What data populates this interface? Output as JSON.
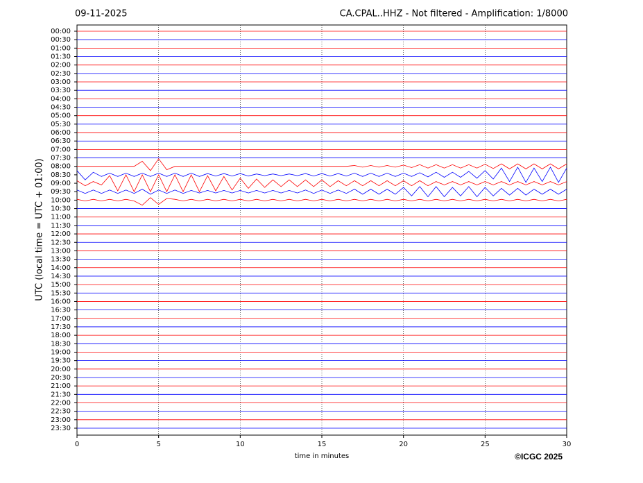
{
  "chart_data": {
    "type": "helicorder",
    "date": "09-11-2025",
    "title": "CA.CPAL..HHZ - Not filtered - Amplification: 1/8000",
    "ylabel": "UTC (local time = UTC + 01:00)",
    "xlabel": "time in minutes",
    "credit": "©ICGC 2025",
    "categories": [
      "00:00",
      "00:30",
      "01:00",
      "01:30",
      "02:00",
      "02:30",
      "03:00",
      "03:30",
      "04:00",
      "04:30",
      "05:00",
      "05:30",
      "06:00",
      "06:30",
      "07:00",
      "07:30",
      "08:00",
      "08:30",
      "09:00",
      "09:30",
      "10:00",
      "10:30",
      "11:00",
      "11:30",
      "12:00",
      "12:30",
      "13:00",
      "13:30",
      "14:00",
      "14:30",
      "15:00",
      "15:30",
      "16:00",
      "16:30",
      "17:00",
      "17:30",
      "18:00",
      "18:30",
      "19:00",
      "19:30",
      "20:00",
      "20:30",
      "21:00",
      "21:30",
      "22:00",
      "22:30",
      "23:00",
      "23:30"
    ],
    "colors": [
      "#ff0000",
      "#0000ff"
    ],
    "xlim": [
      0,
      30
    ],
    "xticks": [
      0,
      5,
      10,
      15,
      20,
      25,
      30
    ],
    "grid": true,
    "x": [
      0,
      0.5,
      1,
      1.5,
      2,
      2.5,
      3,
      3.5,
      4,
      4.5,
      5,
      5.5,
      6,
      6.5,
      7,
      7.5,
      8,
      8.5,
      9,
      9.5,
      10,
      10.5,
      11,
      11.5,
      12,
      12.5,
      13,
      13.5,
      14,
      14.5,
      15,
      15.5,
      16,
      16.5,
      17,
      17.5,
      18,
      18.5,
      19,
      19.5,
      20,
      20.5,
      21,
      21.5,
      22,
      22.5,
      23,
      23.5,
      24,
      24.5,
      25,
      25.5,
      26,
      26.5,
      27,
      27.5,
      28,
      28.5,
      29,
      29.5,
      30
    ],
    "traces": [
      {
        "time": "08:00",
        "values": [
          0,
          0,
          0,
          0,
          0,
          0,
          0,
          0,
          0.6,
          -0.5,
          0.9,
          -0.4,
          0,
          0,
          0,
          0,
          0,
          0,
          0,
          0,
          0,
          0,
          0,
          0,
          0,
          0,
          0,
          0,
          0,
          0,
          0,
          0,
          0,
          0,
          0.1,
          -0.1,
          0.1,
          -0.1,
          0.1,
          -0.1,
          0.15,
          -0.15,
          0.2,
          -0.2,
          0.2,
          -0.2,
          0.2,
          -0.2,
          0.2,
          -0.2,
          0.25,
          -0.25,
          0.3,
          -0.3,
          0.3,
          -0.3,
          0.3,
          -0.3,
          0.3,
          -0.3,
          0.3
        ]
      },
      {
        "time": "08:30",
        "values": [
          0.5,
          -0.6,
          0.3,
          -0.2,
          0.2,
          -0.2,
          0.2,
          -0.2,
          0.2,
          -0.2,
          0.2,
          -0.2,
          0.2,
          -0.2,
          0.2,
          -0.2,
          0.15,
          -0.15,
          0.15,
          -0.15,
          0.15,
          -0.15,
          0.1,
          -0.1,
          0.1,
          -0.1,
          0.1,
          -0.1,
          0.15,
          -0.15,
          0.15,
          -0.15,
          0.15,
          -0.15,
          0.2,
          -0.2,
          0.2,
          -0.2,
          0.2,
          -0.2,
          0.2,
          -0.2,
          0.25,
          -0.25,
          0.3,
          -0.3,
          0.3,
          -0.3,
          0.4,
          -0.4,
          0.5,
          -0.5,
          0.8,
          -0.8,
          0.9,
          -0.9,
          0.8,
          -0.8,
          0.9,
          -0.9,
          0.8
        ]
      },
      {
        "time": "09:00",
        "values": [
          0.3,
          -0.3,
          0.2,
          -0.2,
          0.9,
          -0.9,
          1.0,
          -1.0,
          1.0,
          -1.0,
          1.0,
          -1.0,
          1.0,
          -1.0,
          1.0,
          -1.0,
          0.9,
          -0.9,
          0.8,
          -0.8,
          0.6,
          -0.6,
          0.5,
          -0.5,
          0.4,
          -0.4,
          0.4,
          -0.4,
          0.4,
          -0.4,
          0.4,
          -0.4,
          0.3,
          -0.3,
          0.3,
          -0.3,
          0.3,
          -0.3,
          0.3,
          -0.3,
          0.3,
          -0.3,
          0.3,
          -0.3,
          0.2,
          -0.2,
          0.2,
          -0.2,
          0.2,
          -0.2,
          0.2,
          -0.2,
          0.2,
          -0.2,
          0.2,
          -0.2,
          0.2,
          -0.2,
          0.2,
          -0.2,
          0.2
        ]
      },
      {
        "time": "09:30",
        "values": [
          0.2,
          -0.2,
          0.2,
          -0.2,
          0.2,
          -0.2,
          0.2,
          -0.2,
          0.3,
          -0.3,
          0.2,
          -0.2,
          0.2,
          -0.2,
          0.15,
          -0.15,
          0.15,
          -0.15,
          0.15,
          -0.15,
          0.15,
          -0.15,
          0.15,
          -0.15,
          0.15,
          -0.15,
          0.15,
          -0.15,
          0.2,
          -0.2,
          0.2,
          -0.2,
          0.2,
          -0.2,
          0.3,
          -0.3,
          0.3,
          -0.3,
          0.3,
          -0.3,
          0.5,
          -0.5,
          0.6,
          -0.6,
          0.6,
          -0.6,
          0.5,
          -0.5,
          0.6,
          -0.6,
          0.5,
          -0.5,
          0.4,
          -0.4,
          0.4,
          -0.4,
          0.3,
          -0.3,
          0.3,
          -0.3,
          0.3
        ]
      },
      {
        "time": "10:00",
        "values": [
          0.1,
          -0.1,
          0.1,
          -0.1,
          0.1,
          -0.1,
          0.1,
          -0.1,
          -0.6,
          0.3,
          -0.5,
          0.2,
          0.1,
          -0.1,
          0.1,
          -0.1,
          0.1,
          -0.1,
          0.1,
          -0.1,
          0.1,
          -0.1,
          0.1,
          -0.1,
          0.1,
          -0.1,
          0.1,
          -0.1,
          0.1,
          -0.1,
          0.1,
          -0.1,
          0.1,
          -0.1,
          0.1,
          -0.1,
          0.1,
          -0.1,
          0.1,
          -0.1,
          0.1,
          -0.1,
          0.1,
          -0.1,
          0.1,
          -0.1,
          0.1,
          -0.1,
          0.1,
          -0.1,
          0.1,
          -0.1,
          0.1,
          -0.1,
          0.1,
          -0.1,
          0.1,
          -0.1,
          0.1,
          -0.1,
          0.1
        ]
      }
    ]
  }
}
